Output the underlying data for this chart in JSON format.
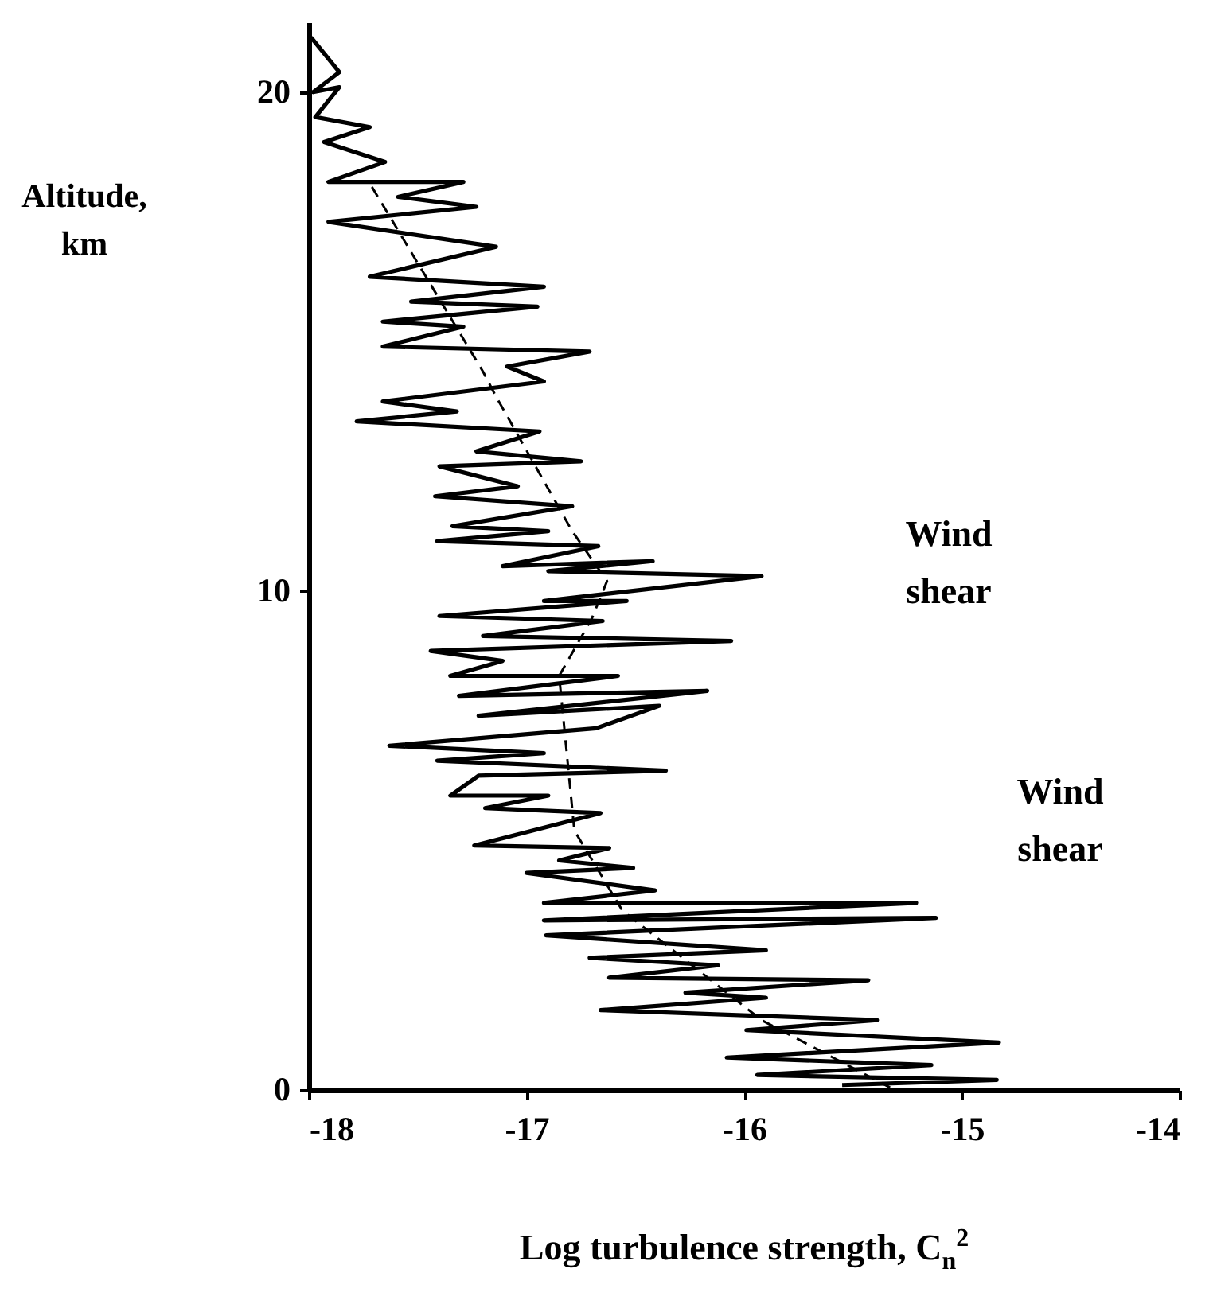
{
  "chart_data": {
    "type": "line",
    "xlabel": "Log turbulence strength, C$_{n}$$^{2}$",
    "ylabel": "Altitude, km",
    "xlim": [
      -18,
      -14
    ],
    "xticks": [
      -18,
      -17,
      -16,
      -15,
      -14
    ],
    "ylim": [
      0,
      21.4
    ],
    "yticks": [
      0,
      10,
      20
    ],
    "grid": false,
    "series": [
      {
        "color": "#000000",
        "line_style": "solid",
        "x": [
          -17.99,
          -17.86,
          -17.98,
          -17.86,
          -17.97,
          -17.72,
          -17.93,
          -17.65,
          -17.91,
          -17.29,
          -17.59,
          -17.23,
          -17.91,
          -17.14,
          -17.72,
          -16.92,
          -17.53,
          -16.95,
          -17.66,
          -17.29,
          -17.66,
          -16.71,
          -17.09,
          -16.92,
          -17.66,
          -17.32,
          -17.78,
          -16.94,
          -17.23,
          -16.75,
          -17.4,
          -17.04,
          -17.42,
          -16.79,
          -17.34,
          -16.9,
          -17.41,
          -16.67,
          -17.11,
          -16.42,
          -16.9,
          -15.92,
          -16.92,
          -16.54,
          -17.4,
          -16.65,
          -17.2,
          -16.06,
          -17.44,
          -17.11,
          -17.35,
          -16.58,
          -17.31,
          -16.17,
          -17.22,
          -16.39,
          -16.68,
          -17.63,
          -16.92,
          -17.41,
          -16.36,
          -17.22,
          -17.35,
          -16.9,
          -17.19,
          -16.66,
          -17.24,
          -16.62,
          -16.85,
          -16.51,
          -17.0,
          -16.41,
          -16.92,
          -15.21,
          -16.92,
          -15.12,
          -16.91,
          -15.9,
          -16.71,
          -16.12,
          -16.62,
          -15.43,
          -16.27,
          -15.9,
          -16.66,
          -15.39,
          -15.99,
          -14.83,
          -16.08,
          -15.14,
          -15.94,
          -14.84,
          -15.55
        ],
        "values": [
          21.1,
          20.4,
          20.0,
          20.1,
          19.5,
          19.3,
          19.0,
          18.6,
          18.2,
          18.2,
          17.9,
          17.7,
          17.4,
          16.9,
          16.3,
          16.1,
          15.8,
          15.7,
          15.4,
          15.3,
          14.9,
          14.8,
          14.5,
          14.2,
          13.8,
          13.6,
          13.4,
          13.2,
          12.8,
          12.6,
          12.5,
          12.1,
          11.9,
          11.7,
          11.3,
          11.2,
          11.0,
          10.9,
          10.5,
          10.6,
          10.4,
          10.3,
          9.8,
          9.8,
          9.5,
          9.4,
          9.1,
          9.0,
          8.8,
          8.6,
          8.3,
          8.3,
          7.9,
          8.0,
          7.5,
          7.7,
          7.25,
          6.9,
          6.75,
          6.6,
          6.4,
          6.3,
          5.9,
          5.9,
          5.65,
          5.55,
          4.9,
          4.85,
          4.6,
          4.45,
          4.35,
          4.0,
          3.75,
          3.75,
          3.4,
          3.45,
          3.1,
          2.8,
          2.65,
          2.5,
          2.25,
          2.2,
          1.95,
          1.85,
          1.6,
          1.4,
          1.2,
          0.95,
          0.65,
          0.5,
          0.3,
          0.2,
          0.1
        ]
      },
      {
        "type": "line",
        "color": "#000000",
        "line_style": "dashed",
        "x": [
          -17.71,
          -17.2,
          -17.14,
          -16.79,
          -16.63,
          -16.7,
          -16.85,
          -16.78,
          -16.56,
          -15.92,
          -15.33
        ],
        "values": [
          18.1,
          14.4,
          13.9,
          11.2,
          10.2,
          9.45,
          8.3,
          5.2,
          3.6,
          1.4,
          0.05
        ]
      }
    ],
    "annotations": [
      "Wind shear",
      "Wind shear"
    ]
  }
}
